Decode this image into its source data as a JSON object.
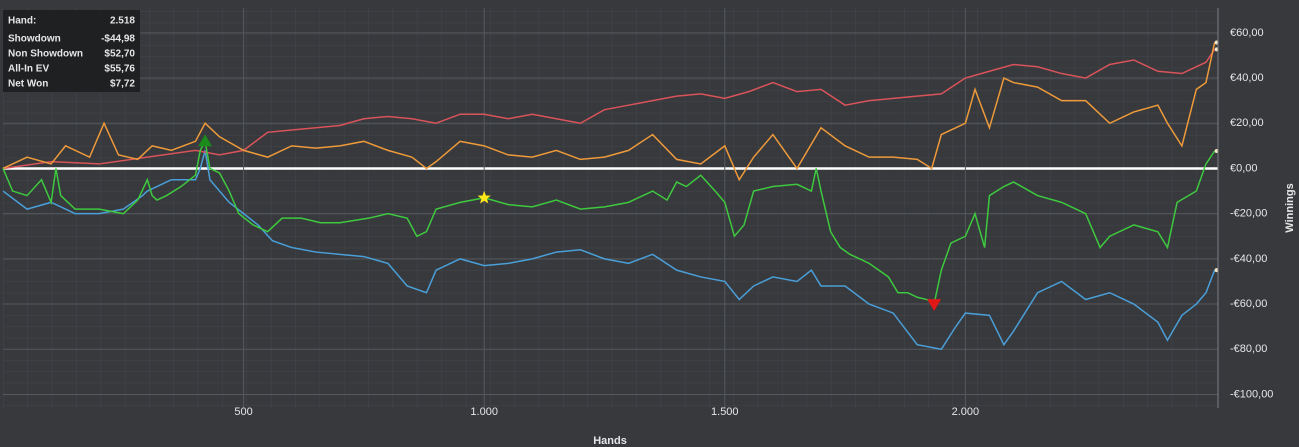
{
  "chart_data": {
    "type": "line",
    "x_label": "Hands",
    "y_label": "Winnings",
    "hand_label": "Hand:",
    "hand_count": "2.518",
    "xlim": [
      0,
      2525
    ],
    "ylim": [
      -106,
      71
    ],
    "xticks": [
      500,
      {
        "value": 1000,
        "label": "1.000"
      },
      {
        "value": 1500,
        "label": "1.500"
      },
      {
        "value": 2000,
        "label": "2.000"
      }
    ],
    "yticks": [
      {
        "value": 60,
        "label": "€60,00"
      },
      {
        "value": 40,
        "label": "€40,00"
      },
      {
        "value": 20,
        "label": "€20,00"
      },
      {
        "value": 0,
        "label": "€0,00"
      },
      {
        "value": -20,
        "label": "-€20,00"
      },
      {
        "value": -40,
        "label": "-€40,00"
      },
      {
        "value": -60,
        "label": "-€60,00"
      },
      {
        "value": -80,
        "label": "-€80,00"
      },
      {
        "value": -100,
        "label": "-€100,00"
      }
    ],
    "grid": true,
    "series": [
      {
        "name": "Showdown",
        "final_label": "-$44,98",
        "color": "#4a9fd8",
        "x": [
          0,
          50,
          100,
          150,
          200,
          250,
          290,
          300,
          350,
          400,
          410,
          420,
          430,
          470,
          500,
          530,
          560,
          600,
          650,
          700,
          750,
          800,
          840,
          880,
          900,
          950,
          1000,
          1050,
          1100,
          1150,
          1200,
          1250,
          1300,
          1350,
          1400,
          1450,
          1500,
          1530,
          1560,
          1600,
          1650,
          1680,
          1700,
          1750,
          1800,
          1850,
          1900,
          1950,
          1980,
          2000,
          2050,
          2080,
          2100,
          2150,
          2200,
          2250,
          2300,
          2350,
          2400,
          2420,
          2450,
          2480,
          2500,
          2518
        ],
        "values": [
          -10,
          -18,
          -15,
          -20,
          -20,
          -18,
          -12,
          -10,
          -5,
          -5,
          0,
          8,
          -5,
          -15,
          -20,
          -25,
          -32,
          -35,
          -37,
          -38,
          -39,
          -42,
          -52,
          -55,
          -45,
          -40,
          -43,
          -42,
          -40,
          -37,
          -36,
          -40,
          -42,
          -38,
          -45,
          -48,
          -50,
          -58,
          -52,
          -48,
          -50,
          -45,
          -52,
          -52,
          -60,
          -64,
          -78,
          -80,
          -70,
          -64,
          -65,
          -78,
          -72,
          -55,
          -50,
          -58,
          -55,
          -60,
          -68,
          -76,
          -65,
          -60,
          -55,
          -44.98
        ]
      },
      {
        "name": "Non Showdown",
        "final_label": "$52,70",
        "color": "#d9545a",
        "x": [
          0,
          100,
          200,
          300,
          400,
          450,
          500,
          550,
          600,
          700,
          750,
          800,
          850,
          900,
          950,
          1000,
          1050,
          1100,
          1150,
          1200,
          1250,
          1300,
          1350,
          1400,
          1450,
          1500,
          1550,
          1600,
          1650,
          1700,
          1750,
          1800,
          1850,
          1900,
          1950,
          2000,
          2050,
          2100,
          2150,
          2200,
          2250,
          2300,
          2350,
          2400,
          2450,
          2500,
          2518
        ],
        "values": [
          0,
          3,
          2,
          5,
          8,
          6,
          8,
          16,
          17,
          19,
          22,
          23,
          22,
          20,
          24,
          24,
          22,
          24,
          22,
          20,
          26,
          28,
          30,
          32,
          33,
          31,
          34,
          38,
          34,
          35,
          28,
          30,
          31,
          32,
          33,
          40,
          43,
          46,
          45,
          42,
          40,
          46,
          48,
          43,
          42,
          47,
          52.7
        ]
      },
      {
        "name": "All-In EV",
        "final_label": "$55,76",
        "color": "#ee9a3a",
        "x": [
          0,
          50,
          100,
          130,
          180,
          210,
          240,
          280,
          310,
          350,
          400,
          420,
          450,
          500,
          550,
          600,
          650,
          700,
          750,
          800,
          850,
          880,
          900,
          950,
          1000,
          1050,
          1100,
          1150,
          1200,
          1250,
          1300,
          1350,
          1400,
          1450,
          1500,
          1530,
          1560,
          1600,
          1650,
          1700,
          1750,
          1800,
          1850,
          1900,
          1930,
          1950,
          2000,
          2020,
          2050,
          2080,
          2100,
          2150,
          2200,
          2250,
          2300,
          2350,
          2400,
          2420,
          2450,
          2480,
          2500,
          2518
        ],
        "values": [
          0,
          5,
          2,
          10,
          5,
          20,
          6,
          4,
          10,
          8,
          12,
          20,
          14,
          8,
          5,
          10,
          9,
          10,
          12,
          8,
          5,
          0,
          3,
          12,
          10,
          6,
          5,
          8,
          4,
          5,
          8,
          15,
          4,
          2,
          10,
          -5,
          5,
          15,
          0,
          18,
          10,
          5,
          5,
          4,
          0,
          15,
          20,
          35,
          18,
          40,
          38,
          36,
          30,
          30,
          20,
          25,
          28,
          20,
          10,
          35,
          38,
          55.76
        ]
      },
      {
        "name": "Net Won",
        "final_label": "$7,72",
        "color": "#3ec93e",
        "x": [
          0,
          20,
          50,
          80,
          100,
          110,
          120,
          150,
          200,
          250,
          280,
          300,
          310,
          320,
          340,
          370,
          400,
          410,
          420,
          430,
          450,
          470,
          490,
          520,
          550,
          580,
          620,
          660,
          700,
          760,
          800,
          840,
          860,
          880,
          900,
          950,
          1000,
          1050,
          1100,
          1150,
          1200,
          1250,
          1300,
          1350,
          1380,
          1400,
          1420,
          1450,
          1480,
          1500,
          1520,
          1540,
          1560,
          1600,
          1650,
          1680,
          1690,
          1700,
          1720,
          1740,
          1760,
          1780,
          1800,
          1820,
          1840,
          1860,
          1880,
          1900,
          1920,
          1935,
          1950,
          1970,
          2000,
          2020,
          2040,
          2050,
          2080,
          2100,
          2150,
          2200,
          2250,
          2280,
          2300,
          2350,
          2400,
          2420,
          2440,
          2480,
          2500,
          2518
        ],
        "values": [
          0,
          -10,
          -12,
          -5,
          -15,
          0,
          -12,
          -18,
          -18,
          -20,
          -14,
          -5,
          -12,
          -14,
          -12,
          -8,
          -3,
          8,
          12,
          0,
          -2,
          -10,
          -20,
          -25,
          -28,
          -22,
          -22,
          -24,
          -24,
          -22,
          -20,
          -22,
          -30,
          -28,
          -18,
          -15,
          -13,
          -16,
          -17,
          -14,
          -18,
          -17,
          -15,
          -10,
          -14,
          -6,
          -8,
          -3,
          -10,
          -15,
          -30,
          -25,
          -10,
          -8,
          -7,
          -10,
          0,
          -10,
          -28,
          -35,
          -38,
          -40,
          -42,
          -45,
          -48,
          -55,
          -55,
          -57,
          -58,
          -60,
          -45,
          -33,
          -30,
          -20,
          -35,
          -12,
          -8,
          -6,
          -12,
          -15,
          -20,
          -35,
          -30,
          -25,
          -28,
          -35,
          -15,
          -10,
          2,
          7.72
        ]
      }
    ],
    "markers": [
      {
        "shape": "triangle-up",
        "x": 420,
        "y": 12,
        "color": "#1a8a1a"
      },
      {
        "shape": "star",
        "x": 1000,
        "y": -13,
        "color": "#ffe81a"
      },
      {
        "shape": "triangle-down",
        "x": 1935,
        "y": -60,
        "color": "#e01818"
      }
    ]
  }
}
